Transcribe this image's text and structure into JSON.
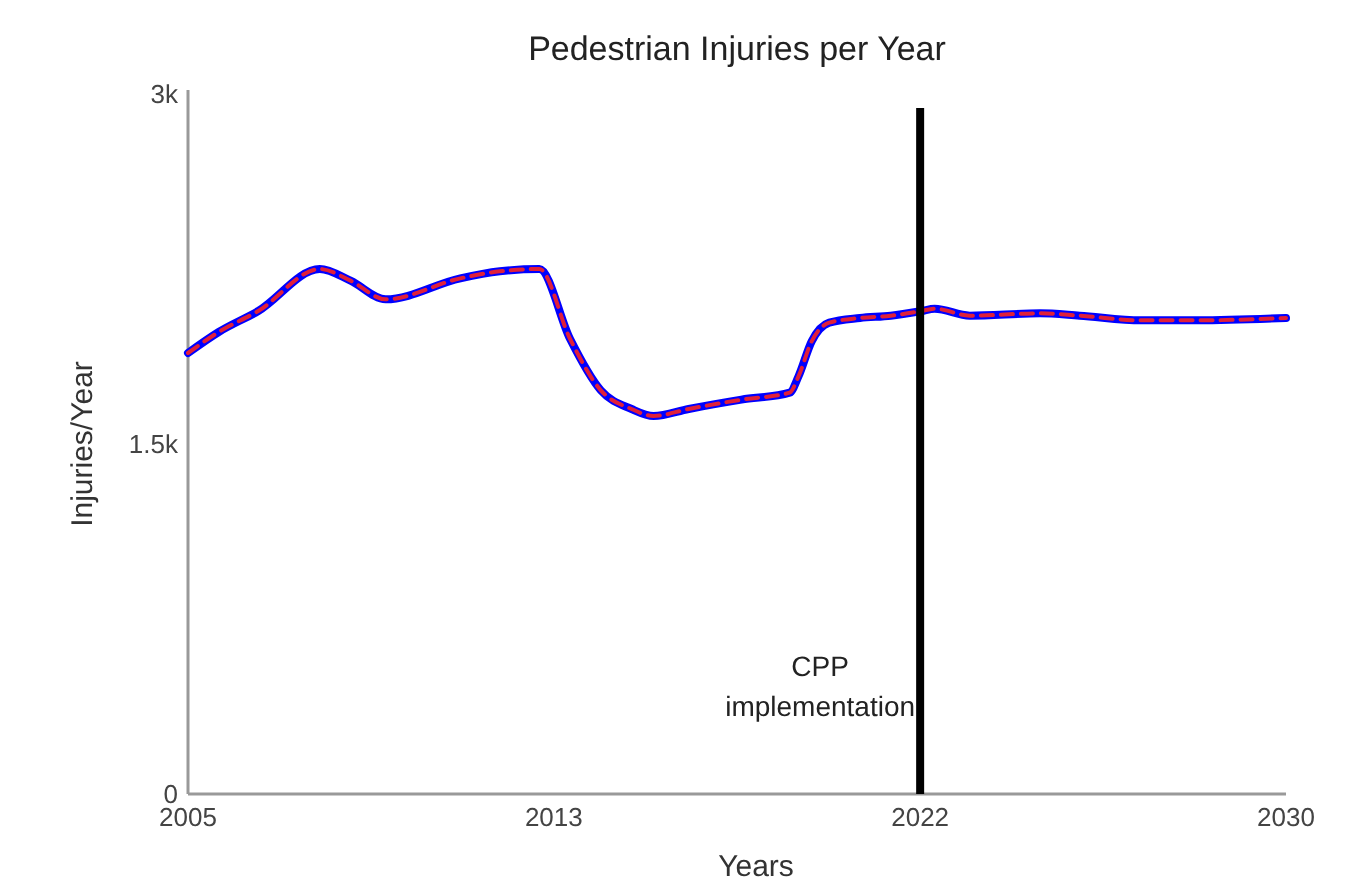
{
  "chart_data": {
    "type": "line",
    "title": "Pedestrian Injuries per Year",
    "xlabel": "Years",
    "ylabel": "Injuries/Year",
    "x": [
      2005,
      2005.7,
      2006.6,
      2008.0,
      2008.7,
      2009.5,
      2011.2,
      2012.1,
      2013.0,
      2013.7,
      2014.4,
      2015.1,
      2015.6,
      2016.4,
      2017.6,
      2018.7,
      2018.9,
      2019.2,
      2019.6,
      2020.3,
      2021.0,
      2021.7,
      2022.0,
      2022.8,
      2024.4,
      2025.3,
      2026.7,
      2028.0,
      2030
    ],
    "series": [
      {
        "color": "#0000ff",
        "line_style": "solid",
        "values": [
          1890,
          1980,
          2070,
          2250,
          2200,
          2120,
          2210,
          2240,
          2250,
          1950,
          1730,
          1650,
          1620,
          1650,
          1690,
          1720,
          1790,
          1940,
          2020,
          2040,
          2050,
          2070,
          2080,
          2050,
          2060,
          2050,
          2030,
          2030,
          2040
        ]
      },
      {
        "color": "#e0203a",
        "line_style": "dashed",
        "values": [
          1890,
          1980,
          2070,
          2250,
          2200,
          2120,
          2210,
          2240,
          2250,
          1950,
          1730,
          1650,
          1620,
          1650,
          1690,
          1720,
          1790,
          1940,
          2020,
          2040,
          2050,
          2070,
          2080,
          2050,
          2060,
          2050,
          2030,
          2030,
          2040
        ]
      }
    ],
    "xlim": [
      2005,
      2030
    ],
    "xticks": [
      2005,
      {
        "value": 2013.33,
        "label": "2013"
      },
      {
        "value": 2021.67,
        "label": "2022"
      },
      2030
    ],
    "ylim": [
      0,
      3000
    ],
    "yticks": [
      0,
      {
        "value": 1500,
        "label": "1.5k"
      },
      {
        "value": 3000,
        "label": "3k"
      }
    ],
    "ref_lines": [
      {
        "axis": "x",
        "value": 2021.67,
        "label": "CPP implementation",
        "color": "#000000"
      }
    ],
    "grid": false
  }
}
